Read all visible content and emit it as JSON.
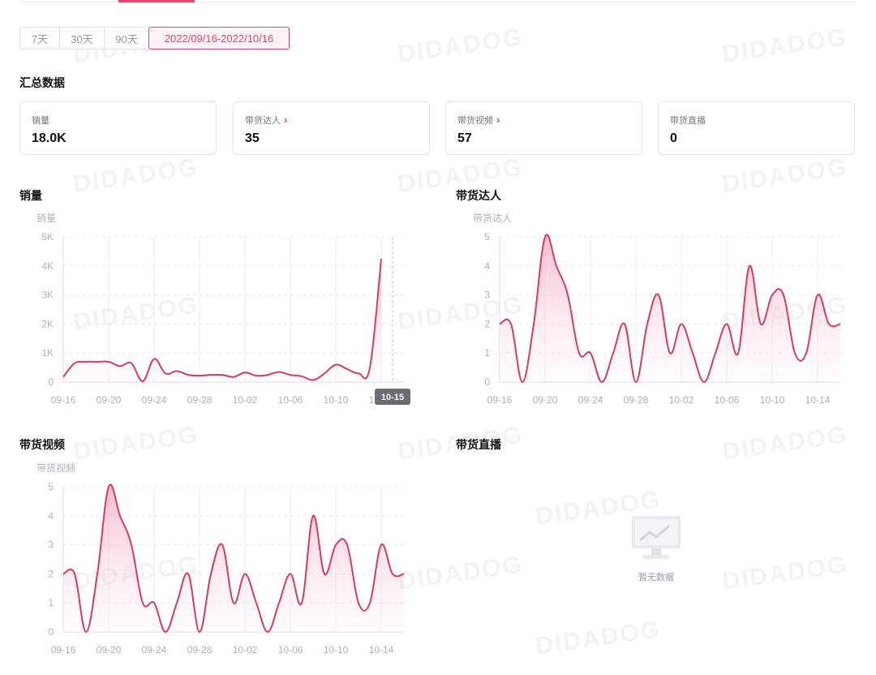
{
  "tabs": [
    {
      "label": "7天",
      "active": false
    },
    {
      "label": "30天",
      "active": false
    },
    {
      "label": "90天",
      "active": false
    },
    {
      "label": "2022/09/16-2022/10/16",
      "active": true
    }
  ],
  "summary": {
    "title": "汇总数据",
    "cards": [
      {
        "label": "销量",
        "value": "18.0K",
        "link": false
      },
      {
        "label": "带货达人",
        "value": "35",
        "link": true
      },
      {
        "label": "带货视频",
        "value": "57",
        "link": true
      },
      {
        "label": "带货直播",
        "value": "0",
        "link": false
      }
    ]
  },
  "watermark": "DIDADOG",
  "colors": {
    "accent": "#e8456b",
    "line": "#d93a62",
    "grid": "#e8e8ee",
    "tick": "#b0b0bc"
  },
  "chart_data": [
    {
      "type": "area",
      "title": "销量",
      "ylabel": "销量",
      "ylim": [
        0,
        5000
      ],
      "yticks": [
        "0",
        "1K",
        "2K",
        "3K",
        "4K",
        "5K"
      ],
      "xticks": [
        "09-16",
        "09-20",
        "09-24",
        "09-28",
        "10-02",
        "10-06",
        "10-10",
        "10-14"
      ],
      "x": [
        "09-16",
        "09-17",
        "09-18",
        "09-19",
        "09-20",
        "09-21",
        "09-22",
        "09-23",
        "09-24",
        "09-25",
        "09-26",
        "09-27",
        "09-28",
        "09-29",
        "09-30",
        "10-01",
        "10-02",
        "10-03",
        "10-04",
        "10-05",
        "10-06",
        "10-07",
        "10-08",
        "10-09",
        "10-10",
        "10-11",
        "10-12",
        "10-13",
        "10-14",
        "10-15",
        "10-16"
      ],
      "values": [
        180,
        650,
        700,
        700,
        700,
        550,
        650,
        30,
        800,
        300,
        380,
        250,
        220,
        250,
        250,
        180,
        330,
        220,
        250,
        350,
        250,
        200,
        70,
        300,
        600,
        450,
        300,
        500,
        4250,
        null,
        null
      ],
      "tooltip": "10-15",
      "series_name": ""
    },
    {
      "type": "area",
      "title": "带货达人",
      "ylabel": "带货达人",
      "ylim": [
        0,
        5
      ],
      "yticks": [
        "0",
        "1",
        "2",
        "3",
        "4",
        "5"
      ],
      "xticks": [
        "09-16",
        "09-20",
        "09-24",
        "09-28",
        "10-02",
        "10-06",
        "10-10",
        "10-14"
      ],
      "x": [
        "09-16",
        "09-17",
        "09-18",
        "09-19",
        "09-20",
        "09-21",
        "09-22",
        "09-23",
        "09-24",
        "09-25",
        "09-26",
        "09-27",
        "09-28",
        "09-29",
        "09-30",
        "10-01",
        "10-02",
        "10-03",
        "10-04",
        "10-05",
        "10-06",
        "10-07",
        "10-08",
        "10-09",
        "10-10",
        "10-11",
        "10-12",
        "10-13",
        "10-14",
        "10-15",
        "10-16"
      ],
      "values": [
        2,
        2,
        0,
        2,
        5,
        4,
        3,
        1,
        1,
        0,
        1,
        2,
        0,
        2,
        3,
        1,
        2,
        1,
        0,
        1,
        2,
        1,
        4,
        2,
        3,
        3,
        1,
        1,
        3,
        2,
        2
      ]
    },
    {
      "type": "area",
      "title": "带货视频",
      "ylabel": "带货视频",
      "ylim": [
        0,
        5
      ],
      "yticks": [
        "0",
        "1",
        "2",
        "3",
        "4",
        "5"
      ],
      "xticks": [
        "09-16",
        "09-20",
        "09-24",
        "09-28",
        "10-02",
        "10-06",
        "10-10",
        "10-14"
      ],
      "x": [
        "09-16",
        "09-17",
        "09-18",
        "09-19",
        "09-20",
        "09-21",
        "09-22",
        "09-23",
        "09-24",
        "09-25",
        "09-26",
        "09-27",
        "09-28",
        "09-29",
        "09-30",
        "10-01",
        "10-02",
        "10-03",
        "10-04",
        "10-05",
        "10-06",
        "10-07",
        "10-08",
        "10-09",
        "10-10",
        "10-11",
        "10-12",
        "10-13",
        "10-14",
        "10-15",
        "10-16"
      ],
      "values": [
        2,
        2,
        0,
        2,
        5,
        4,
        3,
        1,
        1,
        0,
        1,
        2,
        0,
        2,
        3,
        1,
        2,
        1,
        0,
        1,
        2,
        1,
        4,
        2,
        3,
        3,
        1,
        1,
        3,
        2,
        2
      ]
    },
    {
      "type": "area",
      "title": "带货直播",
      "empty_text": "暂无数据"
    }
  ]
}
